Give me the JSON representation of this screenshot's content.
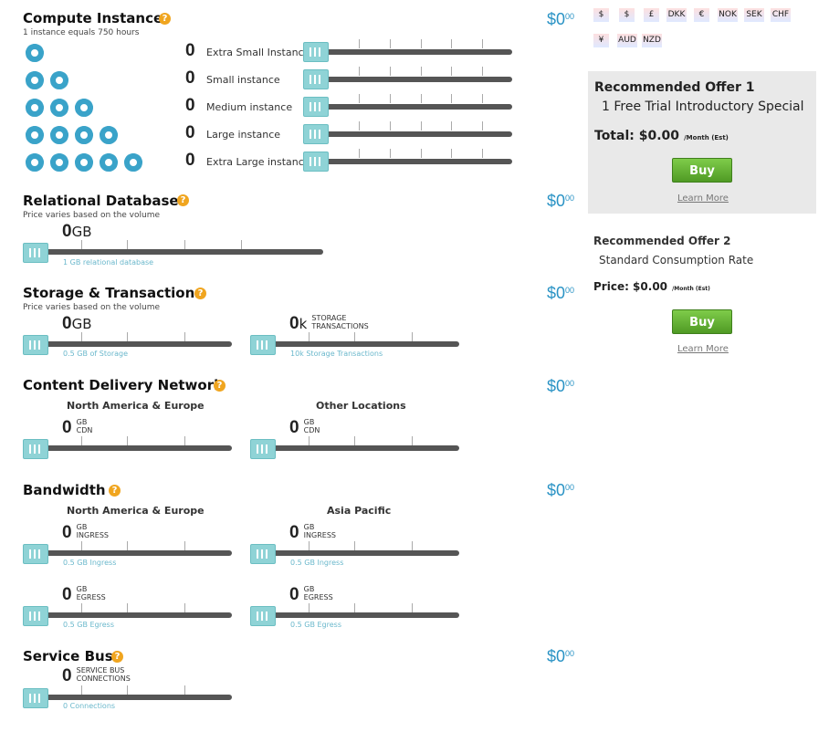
{
  "compute": {
    "title": "Compute Instance",
    "subtitle": "1 instance equals 750 hours",
    "help": "?",
    "price_main": "$0",
    "price_cents": "00",
    "rows": [
      {
        "count": "0",
        "label": "Extra Small Instance"
      },
      {
        "count": "0",
        "label": "Small instance"
      },
      {
        "count": "0",
        "label": "Medium instance"
      },
      {
        "count": "0",
        "label": "Large instance"
      },
      {
        "count": "0",
        "label": "Extra Large instance"
      }
    ]
  },
  "relational": {
    "title": "Relational Databases",
    "subtitle": "Price varies based on the volume",
    "help": "?",
    "value": "0",
    "unit": "GB",
    "hint": "1 GB relational database",
    "price_main": "$0",
    "price_cents": "00"
  },
  "storage": {
    "title": "Storage & Transactions",
    "subtitle": "Price varies based on the volume",
    "help": "?",
    "storage_value": "0",
    "storage_unit": "GB",
    "storage_hint": "0.5 GB of Storage",
    "tx_value": "0",
    "tx_unit": "k",
    "tx_unit_line1": "STORAGE",
    "tx_unit_line2": "TRANSACTIONS",
    "tx_hint": "10k Storage Transactions",
    "price_main": "$0",
    "price_cents": "00"
  },
  "cdn": {
    "title": "Content Delivery Network",
    "help": "?",
    "col1_head": "North America & Europe",
    "col2_head": "Other Locations",
    "col1_value": "0",
    "col2_value": "0",
    "unit_line1": "GB",
    "unit_line2": "CDN",
    "price_main": "$0",
    "price_cents": "00"
  },
  "bandwidth": {
    "title": "Bandwidth",
    "help": "?",
    "col1_head": "North America & Europe",
    "col2_head": "Asia Pacific",
    "ingress": {
      "value": "0",
      "unit_line1": "GB",
      "unit_line2": "INGRESS",
      "hint": "0.5 GB Ingress"
    },
    "egress": {
      "value": "0",
      "unit_line1": "GB",
      "unit_line2": "EGRESS",
      "hint": "0.5 GB Egress"
    },
    "price_main": "$0",
    "price_cents": "00"
  },
  "servicebus": {
    "title": "Service Bus",
    "help": "?",
    "value": "0",
    "unit_line1": "SERVICE BUS",
    "unit_line2": "CONNECTIONS",
    "hint": "0 Connections",
    "price_main": "$0",
    "price_cents": "00"
  },
  "currencies": [
    "$",
    "$",
    "£",
    "DKK",
    "€",
    "NOK",
    "SEK",
    "CHF",
    "¥",
    "AUD",
    "NZD"
  ],
  "offer1": {
    "title": "Recommended Offer 1",
    "name": "1 Free Trial Introductory Special",
    "total_label": "Total: $0.00",
    "period": "/Month (Est)",
    "buy": "Buy",
    "learn": "Learn More"
  },
  "offer2": {
    "title": "Recommended Offer 2",
    "name": "Standard Consumption Rate",
    "price_label": "Price: $0.00",
    "period": "/Month (Est)",
    "buy": "Buy",
    "learn": "Learn More"
  },
  "colors": {
    "accent": "#2a93c5",
    "help": "#f0a51f",
    "buy": "#5aa82d",
    "handle": "#8fd3d6"
  }
}
